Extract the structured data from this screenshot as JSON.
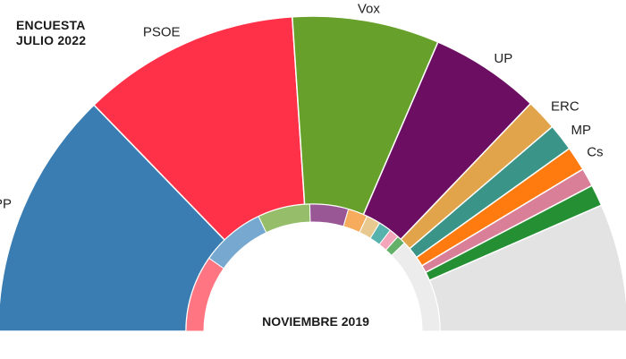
{
  "header": {
    "line1": "ENCUESTA",
    "line2": "JULIO 2022"
  },
  "inner_label": "NOVIEMBRE 2019",
  "chart_data": {
    "type": "pie",
    "subtype": "nested-semicircle",
    "rings": [
      {
        "name": "ENCUESTA JULIO 2022",
        "slices": [
          {
            "label": "PP",
            "value": 25.5,
            "color": "#3a7db3"
          },
          {
            "label": "PSOE",
            "value": 22.4,
            "color": "#ff3148"
          },
          {
            "label": "Vox",
            "value": 15.1,
            "color": "#67a02a"
          },
          {
            "label": "UP",
            "value": 11.3,
            "color": "#6c0e62"
          },
          {
            "label": "ERC",
            "value": 3.2,
            "color": "#e2a44a"
          },
          {
            "label": "MP",
            "value": 2.8,
            "color": "#3a9488"
          },
          {
            "label": "Cs",
            "value": 2.5,
            "color": "#ff7b0f"
          },
          {
            "label": "",
            "value": 1.9,
            "color": "#d97f97"
          },
          {
            "label": "",
            "value": 2.2,
            "color": "#259033"
          },
          {
            "label": "",
            "value": 13.1,
            "color": "#e3e3e3"
          }
        ]
      },
      {
        "name": "NOVIEMBRE 2019",
        "slices": [
          {
            "value": 19.5,
            "color": "#ff7682"
          },
          {
            "value": 16.4,
            "color": "#77a8cf"
          },
          {
            "value": 13.3,
            "color": "#96bd6a"
          },
          {
            "value": 9.8,
            "color": "#995795"
          },
          {
            "value": 5.0,
            "color": "#f6ac5c"
          },
          {
            "value": 3.6,
            "color": "#e8c990"
          },
          {
            "value": 3.2,
            "color": "#57b2ad"
          },
          {
            "value": 2.5,
            "color": "#f3a6b9"
          },
          {
            "value": 2.3,
            "color": "#63b068"
          },
          {
            "value": 24.4,
            "color": "#ececec"
          }
        ]
      }
    ]
  }
}
